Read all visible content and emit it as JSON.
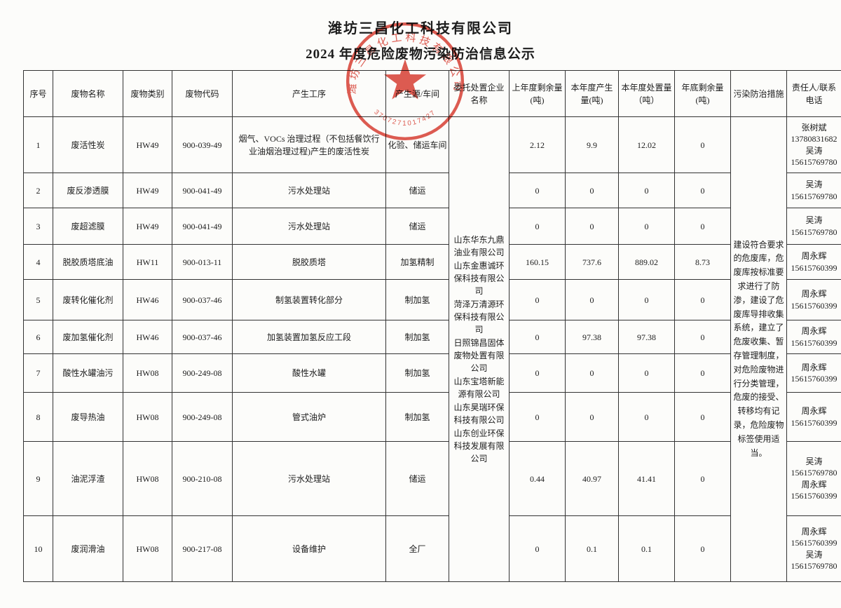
{
  "doc": {
    "title": "潍坊三昌化工科技有限公司",
    "subtitle": "2024 年度危险废物污染防治信息公示"
  },
  "stamp": {
    "arc_text": "潍坊三昌化工科技有限公司",
    "serial": "3707271017427",
    "color": "#d8382c",
    "star": "five-point-star"
  },
  "table": {
    "headers": [
      "序号",
      "废物名称",
      "废物类别",
      "废物代码",
      "产生工序",
      "产生源/车间",
      "委托处置企业名称",
      "上年度剩余量(吨)",
      "本年度产生量(吨)",
      "本年度处置量（吨）",
      "年底剩余量(吨)",
      "污染防治措施",
      "责任人/联系电话"
    ],
    "companies": [
      "山东华东九鼎油业有限公司",
      "山东金惠诚环保科技有限公司",
      "菏泽万清源环保科技有限公司",
      "日照锦昌固体废物处置有限公司",
      "山东宝塔新能源有限公司",
      "山东昊瑞环保科技有限公司",
      "山东创业环保科技发展有限公司"
    ],
    "measures": "建设符合要求的危废库，危废库按标准要求进行了防渗，建设了危废库导排收集系统，建立了危废收集、暂存管理制度，对危险废物进行分类管理，危废的接受、转移均有记录，危险废物标签使用适当。",
    "rows": [
      {
        "no": "1",
        "name": "废活性炭",
        "category": "HW49",
        "code": "900-039-49",
        "process": "烟气、VOCs 治理过程（不包括餐饮行业油烟治理过程)产生的废活性炭",
        "source": "化验、储运车间",
        "prev_remain": "2.12",
        "produced": "9.9",
        "disposed": "12.02",
        "year_end_remain": "0",
        "contacts": [
          "张树斌",
          "13780831682",
          "吴涛",
          "15615769780"
        ]
      },
      {
        "no": "2",
        "name": "废反渗透膜",
        "category": "HW49",
        "code": "900-041-49",
        "process": "污水处理站",
        "source": "储运",
        "prev_remain": "0",
        "produced": "0",
        "disposed": "0",
        "year_end_remain": "0",
        "contacts": [
          "吴涛",
          "15615769780"
        ]
      },
      {
        "no": "3",
        "name": "废超滤膜",
        "category": "HW49",
        "code": "900-041-49",
        "process": "污水处理站",
        "source": "储运",
        "prev_remain": "0",
        "produced": "0",
        "disposed": "0",
        "year_end_remain": "0",
        "contacts": [
          "吴涛",
          "15615769780"
        ]
      },
      {
        "no": "4",
        "name": "脱胶质塔底油",
        "category": "HW11",
        "code": "900-013-11",
        "process": "脱胶质塔",
        "source": "加氢精制",
        "prev_remain": "160.15",
        "produced": "737.6",
        "disposed": "889.02",
        "year_end_remain": "8.73",
        "contacts": [
          "周永辉",
          "15615760399"
        ]
      },
      {
        "no": "5",
        "name": "废转化催化剂",
        "category": "HW46",
        "code": "900-037-46",
        "process": "制氢装置转化部分",
        "source": "制加氢",
        "prev_remain": "0",
        "produced": "0",
        "disposed": "0",
        "year_end_remain": "0",
        "contacts": [
          "周永辉",
          "15615760399"
        ]
      },
      {
        "no": "6",
        "name": "废加氢催化剂",
        "category": "HW46",
        "code": "900-037-46",
        "process": "加氢装置加氢反应工段",
        "source": "制加氢",
        "prev_remain": "0",
        "produced": "97.38",
        "disposed": "97.38",
        "year_end_remain": "0",
        "contacts": [
          "周永辉",
          "15615760399"
        ]
      },
      {
        "no": "7",
        "name": "酸性水罐油污",
        "category": "HW08",
        "code": "900-249-08",
        "process": "酸性水罐",
        "source": "制加氢",
        "prev_remain": "0",
        "produced": "0",
        "disposed": "0",
        "year_end_remain": "0",
        "contacts": [
          "周永辉",
          "15615760399"
        ]
      },
      {
        "no": "8",
        "name": "废导热油",
        "category": "HW08",
        "code": "900-249-08",
        "process": "管式油炉",
        "source": "制加氢",
        "prev_remain": "0",
        "produced": "0",
        "disposed": "0",
        "year_end_remain": "0",
        "contacts": [
          "周永辉",
          "15615760399"
        ]
      },
      {
        "no": "9",
        "name": "油泥浮渣",
        "category": "HW08",
        "code": "900-210-08",
        "process": "污水处理站",
        "source": "储运",
        "prev_remain": "0.44",
        "produced": "40.97",
        "disposed": "41.41",
        "year_end_remain": "0",
        "contacts": [
          "吴涛",
          "15615769780",
          "周永辉",
          "15615760399"
        ]
      },
      {
        "no": "10",
        "name": "废润滑油",
        "category": "HW08",
        "code": "900-217-08",
        "process": "设备维护",
        "source": "全厂",
        "prev_remain": "0",
        "produced": "0.1",
        "disposed": "0.1",
        "year_end_remain": "0",
        "contacts": [
          "周永辉",
          "15615760399",
          "吴涛",
          "15615769780"
        ]
      }
    ]
  }
}
